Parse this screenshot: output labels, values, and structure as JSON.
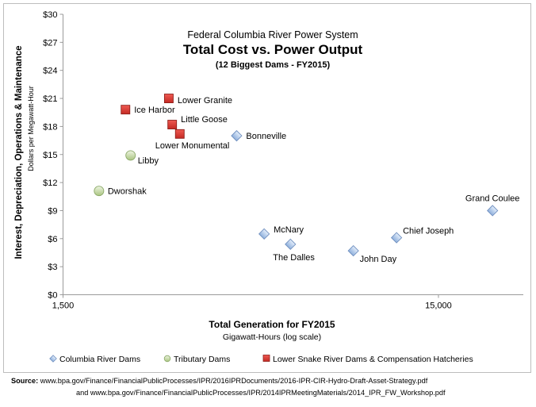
{
  "chart_data": {
    "type": "scatter",
    "title_lines": [
      "Federal Columbia River Power System",
      "Total Cost vs. Power Output",
      "(12 Biggest Dams - FY2015)"
    ],
    "xlabel": "Total Generation for FY2015",
    "xlabel_sub": "Gigawatt-Hours (log scale)",
    "ylabel": "Interest, Depreciation, Operations & Maintenance",
    "ylabel_sub": "Dollars per Megawatt-Hour",
    "x_scale": "log",
    "xlim": [
      1500,
      25000
    ],
    "ylim": [
      0,
      30
    ],
    "y_ticks": [
      0,
      3,
      6,
      9,
      12,
      15,
      18,
      21,
      24,
      27,
      30
    ],
    "y_tick_labels": [
      "$0",
      "$3",
      "$6",
      "$9",
      "$12",
      "$15",
      "$18",
      "$21",
      "$24",
      "$27",
      "$30"
    ],
    "x_ticks": [
      1500,
      15000
    ],
    "x_tick_labels": [
      "1,500",
      "15,000"
    ],
    "grid": false,
    "legend_position": "bottom",
    "series": [
      {
        "name": "Columbia River Dams",
        "marker": "diamond",
        "color": "#a9c3e8",
        "points": [
          {
            "label": "Bonneville",
            "x": 4350,
            "y": 17.0
          },
          {
            "label": "McNary",
            "x": 5150,
            "y": 6.5
          },
          {
            "label": "The Dalles",
            "x": 6050,
            "y": 5.4
          },
          {
            "label": "John Day",
            "x": 8900,
            "y": 4.7
          },
          {
            "label": "Chief Joseph",
            "x": 11600,
            "y": 6.1
          },
          {
            "label": "Grand Coulee",
            "x": 20900,
            "y": 9.0
          }
        ]
      },
      {
        "name": "Tributary Dams",
        "marker": "circle",
        "color": "#c6dca4",
        "points": [
          {
            "label": "Libby",
            "x": 2270,
            "y": 14.9
          },
          {
            "label": "Dworshak",
            "x": 1870,
            "y": 11.1
          }
        ]
      },
      {
        "name": "Lower Snake River Dams & Compensation Hatcheries",
        "marker": "square",
        "color": "#d93a34",
        "points": [
          {
            "label": "Lower Granite",
            "x": 2870,
            "y": 21.0
          },
          {
            "label": "Ice Harbor",
            "x": 2200,
            "y": 19.8
          },
          {
            "label": "Little Goose",
            "x": 2930,
            "y": 18.2
          },
          {
            "label": "Lower Monumental",
            "x": 3070,
            "y": 17.2
          }
        ]
      }
    ]
  },
  "source": {
    "prefix": "Source:",
    "line1": " www.bpa.gov/Finance/FinancialPublicProcesses/IPR/2016IPRDocuments/2016-IPR-CIR-Hydro-Draft-Asset-Strategy.pdf",
    "line2": "and www.bpa.gov/Finance/FinancialPublicProcesses/IPR/2014IPRMeetingMaterials/2014_IPR_FW_Workshop.pdf"
  }
}
